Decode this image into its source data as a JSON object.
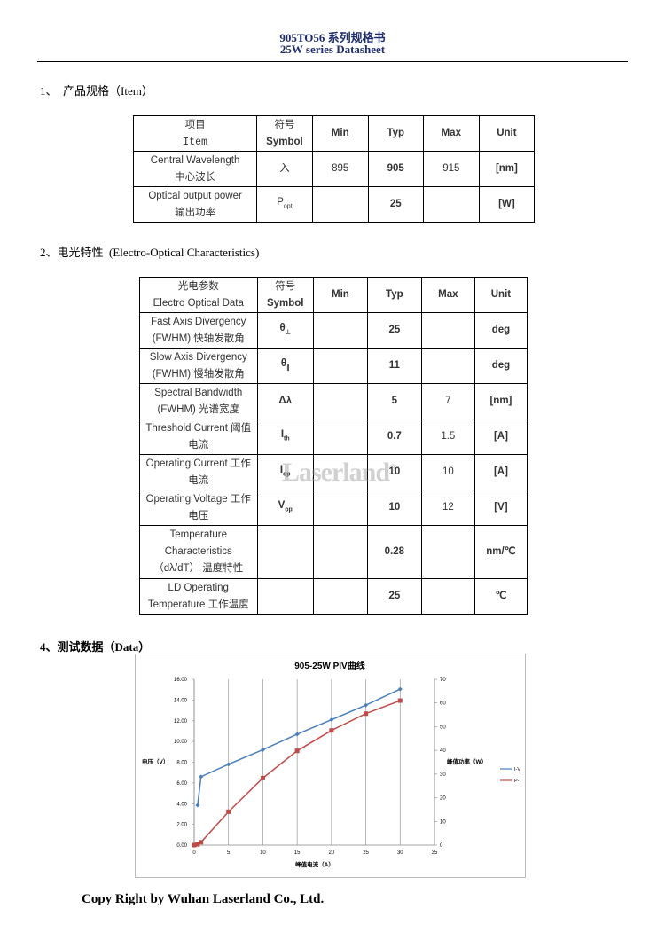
{
  "header": {
    "title": "905TO56 系列规格书",
    "subtitle": "25W series Datasheet"
  },
  "section1": {
    "heading": "1、  产品规格（Item）"
  },
  "table1": {
    "header": [
      [
        "项目",
        "Item"
      ],
      [
        "符号",
        "Symbol"
      ],
      "Min",
      "Typ",
      "Max",
      "Unit"
    ],
    "rows": [
      [
        [
          "Central Wavelength",
          "中心波长"
        ],
        "入",
        895,
        905,
        915,
        "[nm]"
      ],
      [
        [
          "Optical output power",
          "输出功率"
        ],
        {
          "base": "P",
          "sub": "opt"
        },
        null,
        25,
        null,
        "[W]"
      ]
    ]
  },
  "section2": {
    "heading": "2、电光特性  (Electro-Optical Characteristics)"
  },
  "table2": {
    "header": [
      [
        "光电参数",
        "Electro Optical Data"
      ],
      [
        "符号",
        "Symbol"
      ],
      "Min",
      "Typ",
      "Max",
      "Unit"
    ],
    "rows": [
      [
        [
          "Fast Axis Divergency",
          "(FWHM) 快轴发散角"
        ],
        {
          "base": "θ",
          "sub": "⊥"
        },
        null,
        25,
        null,
        "deg"
      ],
      [
        [
          "Slow Axis Divergency",
          "(FWHM) 慢轴发散角"
        ],
        {
          "base": "θ",
          "sub": "∥"
        },
        null,
        11,
        null,
        "deg"
      ],
      [
        [
          "Spectral Bandwidth",
          "(FWHM) 光谱宽度"
        ],
        "Δλ",
        null,
        5,
        7,
        "[nm]"
      ],
      [
        [
          "Threshold Current 阈值",
          "电流"
        ],
        {
          "base": "I",
          "sub": "th"
        },
        null,
        0.7,
        1.5,
        "[A]"
      ],
      [
        [
          "Operating Current 工作",
          "电流"
        ],
        {
          "base": "I",
          "sub": "op"
        },
        null,
        10,
        10,
        "[A]"
      ],
      [
        [
          "Operating Voltage 工作",
          "电压"
        ],
        {
          "base": "V",
          "sub": "op"
        },
        null,
        10,
        12,
        "[V]"
      ],
      [
        [
          "Temperature",
          "Characteristics",
          "（dλ/dT） 温度特性"
        ],
        null,
        null,
        0.28,
        null,
        "nm/℃"
      ],
      [
        [
          "LD Operating",
          "Temperature 工作温度"
        ],
        null,
        null,
        25,
        null,
        "℃"
      ]
    ]
  },
  "watermark": {
    "text": "Laserland",
    "mark": "®"
  },
  "section4": {
    "heading": "4、测试数据（Data）"
  },
  "chart_data": {
    "type": "line",
    "title": "905-25W PIV曲线",
    "x_label": "峰值电流（A）",
    "y_label": "电压（V）",
    "y2_label": "峰值功率（W）",
    "xlim": [
      0,
      35
    ],
    "xticks": [
      0,
      5,
      10,
      15,
      20,
      25,
      30,
      35
    ],
    "ylim": [
      0,
      16
    ],
    "yticks": [
      {
        "value": 0,
        "label": "0.00"
      },
      {
        "value": 2,
        "label": "2.00"
      },
      {
        "value": 4,
        "label": "4.00"
      },
      {
        "value": 6,
        "label": "6.00"
      },
      {
        "value": 8,
        "label": "8.00"
      },
      {
        "value": 10,
        "label": "10.00"
      },
      {
        "value": 12,
        "label": "12.00"
      },
      {
        "value": 14,
        "label": "14.00"
      },
      {
        "value": 16,
        "label": "16.00"
      }
    ],
    "y2lim": [
      0,
      70
    ],
    "y2ticks": [
      0,
      10,
      20,
      30,
      40,
      50,
      60,
      70
    ],
    "grid": "vertical",
    "legend": "right",
    "series": [
      {
        "name": "I-V",
        "color": "#4a7ebb",
        "marker": "diamond",
        "x": [
          0.5,
          1,
          5,
          10,
          15,
          20,
          25,
          30
        ],
        "values": [
          3.85,
          6.6,
          7.8,
          9.2,
          10.7,
          12.1,
          13.5,
          15.05
        ]
      },
      {
        "name": "P-I",
        "color": "#be4b48",
        "marker": "square",
        "axis": "y2",
        "x": [
          0,
          0.5,
          1,
          5,
          10,
          15,
          20,
          25,
          30
        ],
        "values": [
          0,
          0.3,
          1.2,
          14.1,
          28.3,
          39.8,
          48.4,
          55.5,
          61
        ]
      }
    ]
  },
  "footer": {
    "text": "Copy Right by Wuhan Laserland Co., Ltd."
  }
}
